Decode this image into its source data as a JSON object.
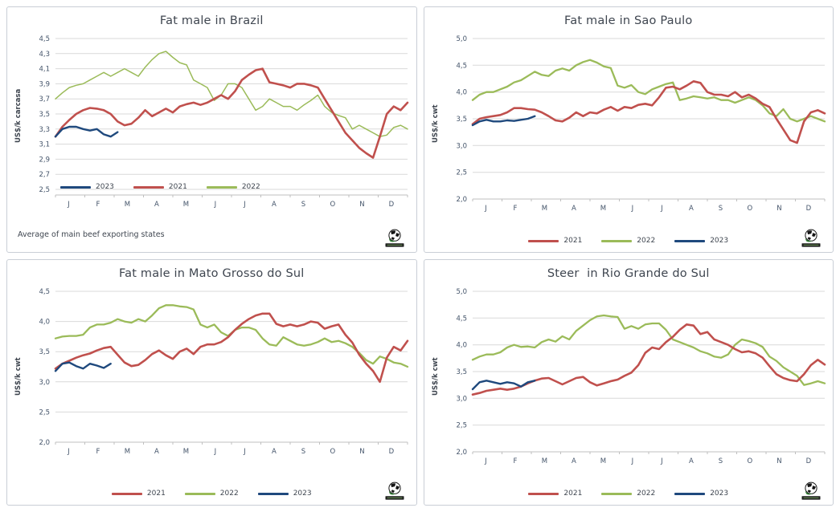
{
  "colors": {
    "series_2021": "#C0504D",
    "series_2022": "#9BBB59",
    "series_2023": "#1F497D",
    "gridline": "#D9D9D9",
    "axis_line": "#BFBFBF",
    "tick_label": "#44546A",
    "title_text": "#3F4650"
  },
  "chart_data": [
    {
      "type": "line",
      "title": "Fat male in Brazil",
      "ylabel": "US$/k carcasa",
      "ylim": [
        2.5,
        4.5
      ],
      "yticks": [
        "4,5",
        "4,3",
        "4,1",
        "3,9",
        "3,7",
        "3,5",
        "3,3",
        "3,1",
        "2,9",
        "2,7",
        "2,5"
      ],
      "xticks": [
        "J",
        "F",
        "M",
        "A",
        "M",
        "J",
        "J",
        "A",
        "S",
        "O",
        "N",
        "D"
      ],
      "grid": true,
      "legend_position": "inside-left",
      "legend_items": [
        "2023",
        "2021",
        "2022"
      ],
      "footnote": "Average  of main  beef exporting states",
      "series": [
        {
          "name": "2022",
          "color": "#9BBB59",
          "values": [
            3.7,
            3.78,
            3.85,
            3.88,
            3.9,
            3.95,
            4.0,
            4.05,
            4.0,
            4.05,
            4.1,
            4.05,
            4.0,
            4.12,
            4.22,
            4.3,
            4.33,
            4.25,
            4.18,
            4.15,
            3.95,
            3.9,
            3.85,
            3.68,
            3.75,
            3.9,
            3.9,
            3.85,
            3.7,
            3.55,
            3.6,
            3.7,
            3.65,
            3.6,
            3.6,
            3.55,
            3.62,
            3.68,
            3.75,
            3.6,
            3.52,
            3.48,
            3.45,
            3.3,
            3.35,
            3.3,
            3.25,
            3.2,
            3.22,
            3.32,
            3.35,
            3.3
          ]
        },
        {
          "name": "2021",
          "color": "#C0504D",
          "values": [
            3.2,
            3.33,
            3.42,
            3.5,
            3.55,
            3.58,
            3.57,
            3.55,
            3.5,
            3.4,
            3.35,
            3.37,
            3.45,
            3.55,
            3.47,
            3.52,
            3.57,
            3.52,
            3.6,
            3.63,
            3.65,
            3.62,
            3.65,
            3.7,
            3.75,
            3.7,
            3.8,
            3.95,
            4.02,
            4.08,
            4.1,
            3.92,
            3.9,
            3.88,
            3.85,
            3.9,
            3.9,
            3.88,
            3.85,
            3.7,
            3.55,
            3.4,
            3.25,
            3.15,
            3.05,
            2.98,
            2.92,
            3.2,
            3.5,
            3.6,
            3.55,
            3.65
          ]
        },
        {
          "name": "2023",
          "color": "#1F497D",
          "values": [
            3.2,
            3.3,
            3.33,
            3.33,
            3.3,
            3.28,
            3.3,
            3.23,
            3.2,
            3.26
          ]
        }
      ]
    },
    {
      "type": "line",
      "title": "Fat male in Sao Paulo",
      "ylabel": "US$/k cwt",
      "ylim": [
        2.0,
        5.0
      ],
      "yticks": [
        "5,0",
        "4,5",
        "4,0",
        "3,5",
        "3,0",
        "2,5",
        "2,0"
      ],
      "xticks": [
        "J",
        "F",
        "M",
        "A",
        "M",
        "J",
        "J",
        "A",
        "S",
        "O",
        "N",
        "D"
      ],
      "grid": true,
      "legend_position": "below-center",
      "legend_items": [
        "2021",
        "2022",
        "2023"
      ],
      "series": [
        {
          "name": "2022",
          "color": "#9BBB59",
          "values": [
            3.85,
            3.95,
            4.0,
            4.0,
            4.05,
            4.1,
            4.18,
            4.22,
            4.3,
            4.38,
            4.32,
            4.3,
            4.4,
            4.44,
            4.4,
            4.5,
            4.56,
            4.6,
            4.55,
            4.48,
            4.45,
            4.12,
            4.08,
            4.13,
            4.0,
            3.96,
            4.05,
            4.1,
            4.15,
            4.18,
            3.85,
            3.88,
            3.92,
            3.9,
            3.88,
            3.9,
            3.85,
            3.85,
            3.8,
            3.85,
            3.9,
            3.85,
            3.75,
            3.6,
            3.55,
            3.68,
            3.5,
            3.45,
            3.5,
            3.55,
            3.5,
            3.45
          ]
        },
        {
          "name": "2021",
          "color": "#C0504D",
          "values": [
            3.4,
            3.5,
            3.53,
            3.55,
            3.57,
            3.62,
            3.7,
            3.7,
            3.68,
            3.67,
            3.62,
            3.55,
            3.47,
            3.45,
            3.52,
            3.62,
            3.55,
            3.62,
            3.6,
            3.67,
            3.72,
            3.65,
            3.72,
            3.7,
            3.76,
            3.78,
            3.75,
            3.9,
            4.08,
            4.1,
            4.05,
            4.12,
            4.2,
            4.17,
            4.0,
            3.95,
            3.95,
            3.92,
            4.0,
            3.9,
            3.95,
            3.88,
            3.78,
            3.72,
            3.5,
            3.3,
            3.1,
            3.05,
            3.45,
            3.62,
            3.66,
            3.6
          ]
        },
        {
          "name": "2023",
          "color": "#1F497D",
          "values": [
            3.38,
            3.45,
            3.48,
            3.45,
            3.45,
            3.47,
            3.46,
            3.48,
            3.5,
            3.55
          ]
        }
      ]
    },
    {
      "type": "line",
      "title": "Fat male in Mato Grosso do Sul",
      "ylabel": "US$/k cwt",
      "ylim": [
        2.0,
        4.5
      ],
      "yticks": [
        "4,5",
        "4,0",
        "3,5",
        "3,0",
        "2,5",
        "2,0"
      ],
      "xticks": [
        "J",
        "F",
        "M",
        "A",
        "M",
        "J",
        "J",
        "A",
        "S",
        "O",
        "N",
        "D"
      ],
      "grid": true,
      "legend_position": "below-center",
      "legend_items": [
        "2021",
        "2022",
        "2023"
      ],
      "series": [
        {
          "name": "2022",
          "color": "#9BBB59",
          "values": [
            3.72,
            3.75,
            3.76,
            3.76,
            3.78,
            3.9,
            3.95,
            3.95,
            3.98,
            4.04,
            4.0,
            3.98,
            4.04,
            4.0,
            4.1,
            4.22,
            4.27,
            4.27,
            4.25,
            4.24,
            4.2,
            3.95,
            3.9,
            3.95,
            3.82,
            3.76,
            3.86,
            3.9,
            3.9,
            3.86,
            3.72,
            3.62,
            3.6,
            3.74,
            3.68,
            3.62,
            3.6,
            3.62,
            3.66,
            3.72,
            3.66,
            3.68,
            3.64,
            3.58,
            3.48,
            3.36,
            3.3,
            3.42,
            3.38,
            3.32,
            3.3,
            3.25
          ]
        },
        {
          "name": "2021",
          "color": "#C0504D",
          "values": [
            3.22,
            3.3,
            3.35,
            3.4,
            3.44,
            3.47,
            3.52,
            3.56,
            3.58,
            3.45,
            3.32,
            3.26,
            3.28,
            3.36,
            3.46,
            3.52,
            3.44,
            3.38,
            3.5,
            3.55,
            3.46,
            3.58,
            3.62,
            3.62,
            3.66,
            3.74,
            3.86,
            3.96,
            4.04,
            4.1,
            4.13,
            4.13,
            3.96,
            3.92,
            3.95,
            3.92,
            3.95,
            4.0,
            3.98,
            3.88,
            3.92,
            3.95,
            3.78,
            3.65,
            3.45,
            3.3,
            3.18,
            3.0,
            3.4,
            3.58,
            3.52,
            3.68
          ]
        },
        {
          "name": "2023",
          "color": "#1F497D",
          "values": [
            3.18,
            3.3,
            3.32,
            3.26,
            3.22,
            3.3,
            3.27,
            3.23,
            3.3
          ]
        }
      ]
    },
    {
      "type": "line",
      "title": "Steer  in Rio Grande do Sul",
      "ylabel": "US$/k cwt",
      "ylim": [
        2.0,
        5.0
      ],
      "yticks": [
        "5,0",
        "4,5",
        "4,0",
        "3,5",
        "3,0",
        "2,5",
        "2,0"
      ],
      "xticks": [
        "J",
        "F",
        "M",
        "A",
        "M",
        "J",
        "J",
        "A",
        "S",
        "O",
        "N",
        "D"
      ],
      "grid": true,
      "legend_position": "below-center",
      "legend_items": [
        "2021",
        "2022",
        "2023"
      ],
      "series": [
        {
          "name": "2022",
          "color": "#9BBB59",
          "values": [
            3.72,
            3.78,
            3.82,
            3.82,
            3.86,
            3.95,
            4.0,
            3.96,
            3.97,
            3.95,
            4.05,
            4.1,
            4.06,
            4.16,
            4.1,
            4.26,
            4.36,
            4.46,
            4.53,
            4.55,
            4.53,
            4.52,
            4.3,
            4.35,
            4.3,
            4.38,
            4.4,
            4.4,
            4.28,
            4.1,
            4.05,
            4.0,
            3.95,
            3.88,
            3.84,
            3.78,
            3.76,
            3.82,
            4.0,
            4.1,
            4.07,
            4.03,
            3.96,
            3.78,
            3.7,
            3.58,
            3.5,
            3.42,
            3.25,
            3.28,
            3.32,
            3.28
          ]
        },
        {
          "name": "2021",
          "color": "#C0504D",
          "values": [
            3.07,
            3.1,
            3.14,
            3.16,
            3.18,
            3.16,
            3.18,
            3.22,
            3.28,
            3.33,
            3.37,
            3.38,
            3.32,
            3.26,
            3.32,
            3.38,
            3.4,
            3.3,
            3.24,
            3.28,
            3.32,
            3.35,
            3.42,
            3.48,
            3.62,
            3.85,
            3.95,
            3.92,
            4.05,
            4.15,
            4.28,
            4.38,
            4.36,
            4.2,
            4.24,
            4.1,
            4.05,
            4.0,
            3.92,
            3.86,
            3.88,
            3.84,
            3.76,
            3.6,
            3.45,
            3.38,
            3.34,
            3.32,
            3.45,
            3.62,
            3.72,
            3.63
          ]
        },
        {
          "name": "2023",
          "color": "#1F497D",
          "values": [
            3.17,
            3.3,
            3.33,
            3.3,
            3.27,
            3.3,
            3.28,
            3.22,
            3.3,
            3.33
          ]
        }
      ]
    }
  ]
}
